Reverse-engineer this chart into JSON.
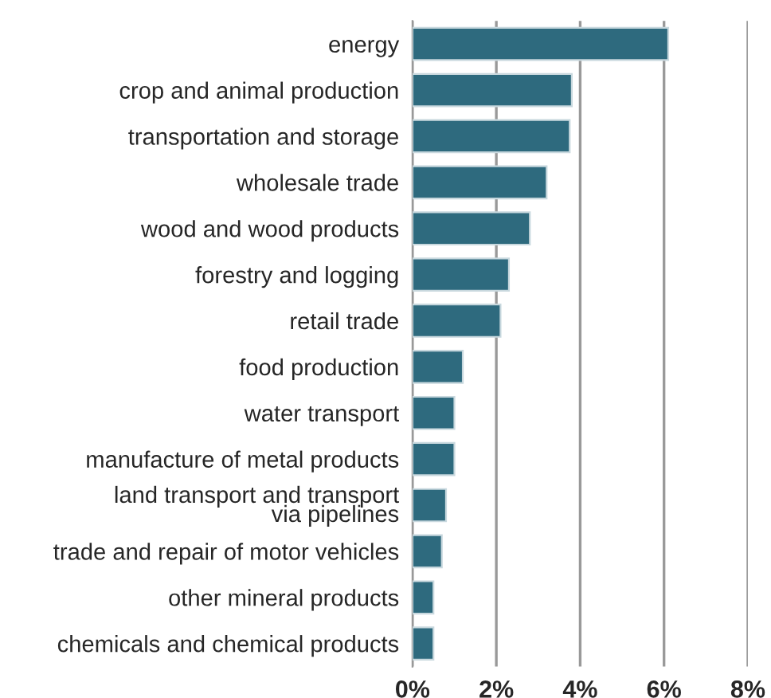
{
  "chart_data": {
    "type": "bar",
    "orientation": "horizontal",
    "categories": [
      "energy",
      "crop and animal production",
      "transportation and storage",
      "wholesale trade",
      "wood and wood products",
      "forestry and logging",
      "retail trade",
      "food production",
      "water transport",
      "manufacture of metal products",
      "land transport and transport\nvia pipelines",
      "trade and repair of motor vehicles",
      "other mineral products",
      "chemicals and chemical products"
    ],
    "values": [
      6.1,
      3.8,
      3.75,
      3.2,
      2.8,
      2.3,
      2.1,
      1.2,
      1.0,
      1.0,
      0.8,
      0.7,
      0.5,
      0.5
    ],
    "color": "#2e6a7e",
    "xlim": [
      0,
      8
    ],
    "xticks": [
      {
        "value": 0,
        "label": "0%"
      },
      {
        "value": 2,
        "label": "2%"
      },
      {
        "value": 4,
        "label": "4%"
      },
      {
        "value": 6,
        "label": "6%"
      },
      {
        "value": 8,
        "label": "8%"
      }
    ],
    "grid": "x"
  }
}
